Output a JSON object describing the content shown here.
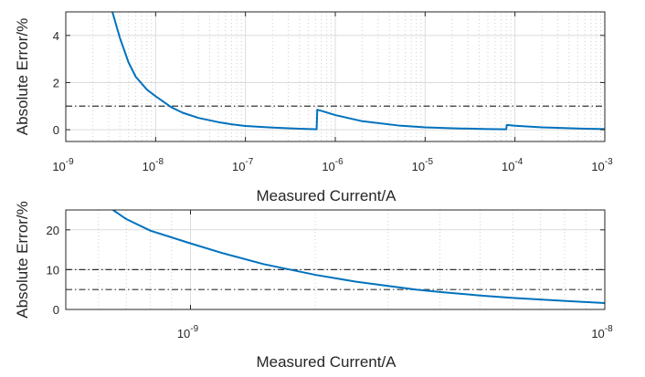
{
  "chart_data": [
    {
      "type": "line",
      "xscale": "log",
      "xlim": [
        1e-09,
        0.001
      ],
      "ylim": [
        -0.5,
        5
      ],
      "xlabel": "Measured Current/A",
      "ylabel": "Absolute Error/%",
      "grid": true,
      "x_ticks": [
        {
          "base": "10",
          "exp": "-9",
          "value": 1e-09
        },
        {
          "base": "10",
          "exp": "-8",
          "value": 1e-08
        },
        {
          "base": "10",
          "exp": "-7",
          "value": 1e-07
        },
        {
          "base": "10",
          "exp": "-6",
          "value": 1e-06
        },
        {
          "base": "10",
          "exp": "-5",
          "value": 1e-05
        },
        {
          "base": "10",
          "exp": "-4",
          "value": 0.0001
        },
        {
          "base": "10",
          "exp": "-3",
          "value": 0.001
        }
      ],
      "y_ticks": [
        0,
        2,
        4
      ],
      "series": [
        {
          "color": "#0072BD",
          "x": [
            3.3e-09,
            4e-09,
            5e-09,
            6e-09,
            8e-09,
            1e-08,
            1.5e-08,
            2e-08,
            3e-08,
            5e-08,
            7e-08,
            1e-07,
            2e-07,
            3e-07,
            4e-07,
            6.2e-07,
            6.3e-07,
            7e-07,
            1e-06,
            2e-06,
            5e-06,
            1e-05,
            2e-05,
            5e-05,
            8e-05,
            8.1e-05,
            0.0001,
            0.0002,
            0.0005,
            0.001
          ],
          "y": [
            5.0,
            3.9,
            2.85,
            2.25,
            1.7,
            1.42,
            0.95,
            0.72,
            0.5,
            0.32,
            0.23,
            0.16,
            0.09,
            0.06,
            0.04,
            0.02,
            0.85,
            0.8,
            0.62,
            0.36,
            0.18,
            0.1,
            0.06,
            0.03,
            0.02,
            0.2,
            0.17,
            0.1,
            0.05,
            0.03
          ]
        }
      ],
      "reference_lines": [
        {
          "y": 1,
          "style": "dash-dot",
          "color": "#333333"
        }
      ]
    },
    {
      "type": "line",
      "xscale": "log",
      "xlim": [
        5e-10,
        1e-08
      ],
      "ylim": [
        0,
        25
      ],
      "xlabel": "Measured Current/A",
      "ylabel": "Absolute Error/%",
      "grid": true,
      "x_ticks": [
        {
          "base": "10",
          "exp": "-9",
          "value": 1e-09
        },
        {
          "base": "10",
          "exp": "-8",
          "value": 1e-08
        }
      ],
      "y_ticks": [
        0,
        10,
        20
      ],
      "series": [
        {
          "color": "#0072BD",
          "x": [
            6.5e-10,
            7e-10,
            8e-10,
            1e-09,
            1.2e-09,
            1.5e-09,
            2e-09,
            2.5e-09,
            3e-09,
            3.5e-09,
            4e-09,
            5e-09,
            6e-09,
            7e-09,
            8e-09,
            9e-09,
            1e-08
          ],
          "y": [
            25,
            22.7,
            19.8,
            16.6,
            14.1,
            11.4,
            8.7,
            7.0,
            5.9,
            5.0,
            4.4,
            3.5,
            2.9,
            2.5,
            2.15,
            1.85,
            1.6
          ]
        }
      ],
      "reference_lines": [
        {
          "y": 10,
          "style": "dash-dot",
          "color": "#333333"
        },
        {
          "y": 5,
          "style": "dash-dot",
          "color": "#333333"
        }
      ]
    }
  ]
}
